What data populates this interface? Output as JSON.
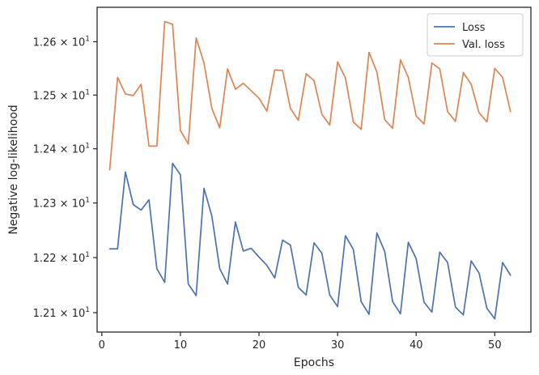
{
  "chart_data": {
    "type": "line",
    "xlabel": "Epochs",
    "ylabel": "Negative log-likelihood",
    "x": [
      1,
      2,
      3,
      4,
      5,
      6,
      7,
      8,
      9,
      10,
      11,
      12,
      13,
      14,
      15,
      16,
      17,
      18,
      19,
      20,
      21,
      22,
      23,
      24,
      25,
      26,
      27,
      28,
      29,
      30,
      31,
      32,
      33,
      34,
      35,
      36,
      37,
      38,
      39,
      40,
      41,
      42,
      43,
      44,
      45,
      46,
      47,
      48,
      49,
      50,
      51,
      52
    ],
    "xlim": [
      -0.6,
      54.6
    ],
    "ylim": [
      12.065,
      12.665
    ],
    "xticks": [
      0,
      10,
      20,
      30,
      40,
      50
    ],
    "xtick_labels": [
      "0",
      "10",
      "20",
      "30",
      "40",
      "50"
    ],
    "yticks": [
      12.1,
      12.2,
      12.3,
      12.4,
      12.5,
      12.6
    ],
    "ytick_mantissas": [
      "1.21",
      "1.22",
      "1.23",
      "1.24",
      "1.25",
      "1.26"
    ],
    "ytick_base": "10",
    "ytick_exponent": "1",
    "yscale": "log",
    "grid": false,
    "legend_position": "top-right",
    "series": [
      {
        "name": "Loss",
        "color": "#4c72b0",
        "values": [
          12.216,
          12.216,
          12.357,
          12.297,
          12.287,
          12.306,
          12.18,
          12.155,
          12.373,
          12.352,
          12.152,
          12.131,
          12.327,
          12.276,
          12.18,
          12.152,
          12.265,
          12.212,
          12.217,
          12.201,
          12.186,
          12.163,
          12.232,
          12.223,
          12.146,
          12.132,
          12.227,
          12.208,
          12.132,
          12.111,
          12.24,
          12.215,
          12.12,
          12.097,
          12.245,
          12.211,
          12.12,
          12.098,
          12.228,
          12.198,
          12.119,
          12.101,
          12.21,
          12.191,
          12.11,
          12.096,
          12.194,
          12.172,
          12.108,
          12.089,
          12.191,
          12.168
        ]
      },
      {
        "name": "Val. loss",
        "color": "#dd8452",
        "values": [
          12.361,
          12.533,
          12.502,
          12.499,
          12.52,
          12.405,
          12.405,
          12.638,
          12.633,
          12.434,
          12.409,
          12.607,
          12.56,
          12.475,
          12.439,
          12.549,
          12.511,
          12.522,
          12.508,
          12.494,
          12.47,
          12.547,
          12.546,
          12.475,
          12.453,
          12.54,
          12.527,
          12.464,
          12.444,
          12.562,
          12.532,
          12.45,
          12.436,
          12.58,
          12.543,
          12.454,
          12.438,
          12.566,
          12.533,
          12.461,
          12.446,
          12.56,
          12.549,
          12.469,
          12.451,
          12.542,
          12.52,
          12.467,
          12.45,
          12.55,
          12.533,
          12.469
        ]
      }
    ]
  }
}
